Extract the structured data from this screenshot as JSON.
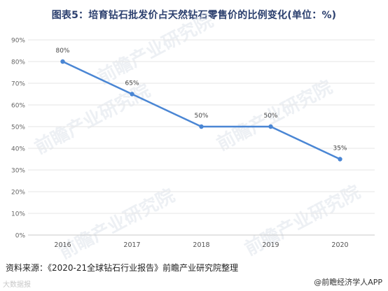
{
  "title": "图表5：培育钻石批发价占天然钻石零售价的比例变化(单位：%)",
  "footer": {
    "source": "资料来源：《2020-21全球钻石行业报告》前瞻产业研究院整理",
    "brand": "@前瞻经济学人APP",
    "corner_logo": "大数据报"
  },
  "watermark_text": "前瞻产业研究院",
  "chart_data": {
    "type": "line",
    "categories": [
      "2016",
      "2017",
      "2018",
      "2019",
      "2020"
    ],
    "series": [
      {
        "values": [
          80,
          65,
          50,
          50,
          35
        ],
        "labels": [
          "80%",
          "65%",
          "50%",
          "50%",
          "35%"
        ]
      }
    ],
    "y_ticks": [
      "0%",
      "10%",
      "20%",
      "30%",
      "40%",
      "50%",
      "60%",
      "70%",
      "80%",
      "90%"
    ],
    "ylim": [
      0,
      90
    ],
    "grid": true,
    "line_color": "#4a86d4"
  }
}
